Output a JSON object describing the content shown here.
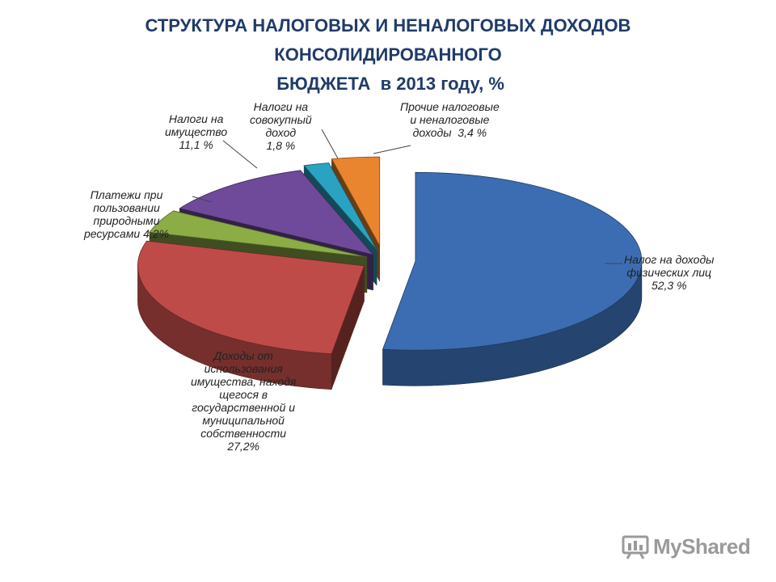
{
  "chart_data": {
    "type": "pie",
    "title": [
      "СТРУКТУРА НАЛОГОВЫХ И НЕНАЛОГОВЫХ ДОХОДОВ",
      "КОНСОЛИДИРОВАННОГО",
      " БЮДЖЕТА  в 2013 году, %"
    ],
    "slices": [
      {
        "label": "Налог на доходы\nфизических лиц\n52,3 %",
        "value": 52.3,
        "color": "#3c6db3"
      },
      {
        "label": "Доходы от\nиспользования\nимущества, находя\nщегося в\nгосударственной и\nмуниципальной\nсобственности\n27,2%",
        "value": 27.2,
        "color": "#bf4b48"
      },
      {
        "label": "Платежи при\nпользовании\nприродными\nресурсами 4,2%",
        "value": 4.2,
        "color": "#8cac46"
      },
      {
        "label": "Налоги на\nимущество\n11,1 %",
        "value": 11.1,
        "color": "#6f4a9a"
      },
      {
        "label": "Налоги на\nсовокупный\nдоход\n1,8 %",
        "value": 1.8,
        "color": "#2aa3c3"
      },
      {
        "label": "Прочие налоговые\nи неналоговые\nдоходы  3,4 %",
        "value": 3.4,
        "color": "#e8852e"
      }
    ]
  },
  "watermark": {
    "text": "MyShared",
    "icon": "presentation-board-icon"
  }
}
